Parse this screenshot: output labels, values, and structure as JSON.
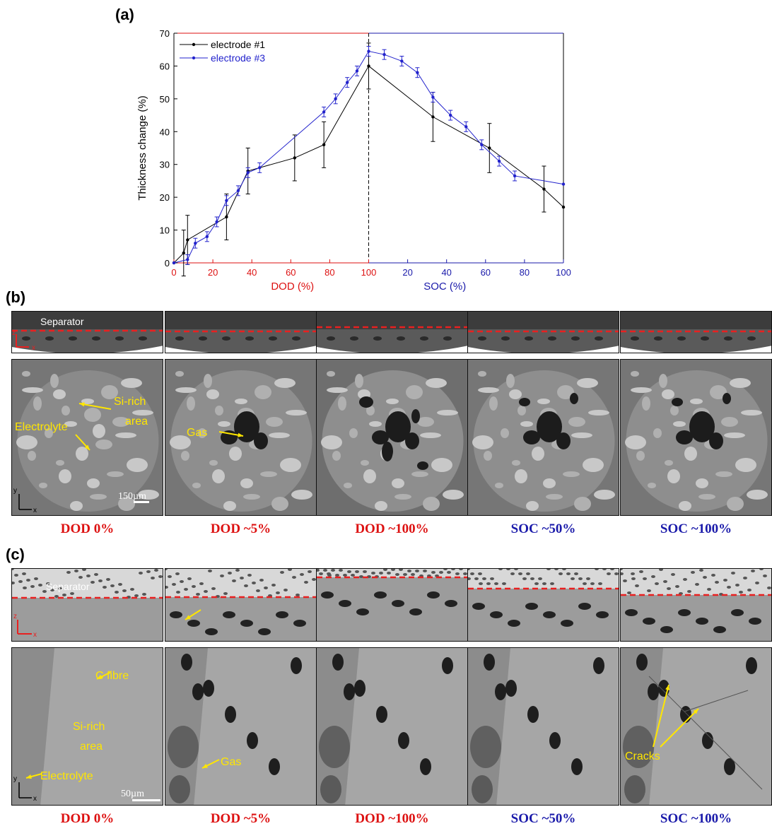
{
  "panels": {
    "a": "(a)",
    "b": "(b)",
    "c": "(c)"
  },
  "chart_data": {
    "type": "line",
    "ylabel": "Thickness change (%)",
    "xlabel_left": "DOD (%)",
    "xlabel_right": "SOC (%)",
    "ylim": [
      0,
      70
    ],
    "yticks": [
      0,
      10,
      20,
      30,
      40,
      50,
      60,
      70
    ],
    "xticks_left": [
      0,
      20,
      40,
      60,
      80,
      100
    ],
    "xticks_right": [
      20,
      40,
      60,
      80,
      100
    ],
    "x_axis_note": "combined axis: DOD 0-100 then SOC 0-100 (x 0-200)",
    "series": [
      {
        "name": "electrode #1",
        "color": "#000000",
        "x": [
          0,
          5,
          7,
          27,
          38,
          62,
          77,
          100,
          133,
          162,
          190,
          200
        ],
        "y": [
          0,
          3,
          7,
          14,
          28,
          32,
          36,
          60,
          44.5,
          35,
          22.5,
          17
        ],
        "err": [
          0,
          7,
          7.5,
          7,
          7,
          7,
          7,
          7,
          7.5,
          7.5,
          7,
          0
        ]
      },
      {
        "name": "electrode #3",
        "color": "#2222cc",
        "x": [
          0,
          7,
          11,
          17,
          22,
          27,
          33,
          38,
          44,
          77,
          83,
          89,
          94,
          100,
          108,
          117,
          125,
          133,
          142,
          150,
          158,
          167,
          175,
          200
        ],
        "y": [
          0,
          1,
          6,
          8,
          12.5,
          19,
          22,
          27.5,
          29,
          46,
          50,
          55,
          58.5,
          64.5,
          63.5,
          61.5,
          58,
          50.5,
          45,
          41.5,
          36,
          31,
          26.5,
          24
        ],
        "err": [
          0,
          1.5,
          1.5,
          1.5,
          1.5,
          1.5,
          1.5,
          1.5,
          1.5,
          1.5,
          1.5,
          1.5,
          1.5,
          1.5,
          1.5,
          1.5,
          1.5,
          1.5,
          1.5,
          1.5,
          1.5,
          1.5,
          1.5,
          0
        ]
      }
    ]
  },
  "panel_b": {
    "separator_label": "Separator",
    "scale_bar": "150µm",
    "annotations": {
      "si_rich_1": "Si-rich",
      "si_rich_2": "area",
      "electrolyte": "Electrolyte",
      "gas": "Gas"
    },
    "axes": {
      "z": "z",
      "x": "x",
      "y": "y"
    },
    "captions": [
      "DOD 0%",
      "DOD ~5%",
      "DOD ~100%",
      "SOC ~50%",
      "SOC ~100%"
    ]
  },
  "panel_c": {
    "separator_label": "Separator",
    "scale_bar": "50µm",
    "annotations": {
      "c_fibre": "C fibre",
      "si_rich_1": "Si-rich",
      "si_rich_2": "area",
      "electrolyte": "Electrolyte",
      "gas": "Gas",
      "cracks": "Cracks"
    },
    "axes": {
      "z": "z",
      "x": "x",
      "y": "y"
    },
    "captions": [
      "DOD 0%",
      "DOD ~5%",
      "DOD ~100%",
      "SOC ~50%",
      "SOC ~100%"
    ]
  },
  "colors": {
    "dod": "#dd1111",
    "soc": "#1a1aaa",
    "dashed_line": "#e82020",
    "annotation": "#ffe600"
  }
}
